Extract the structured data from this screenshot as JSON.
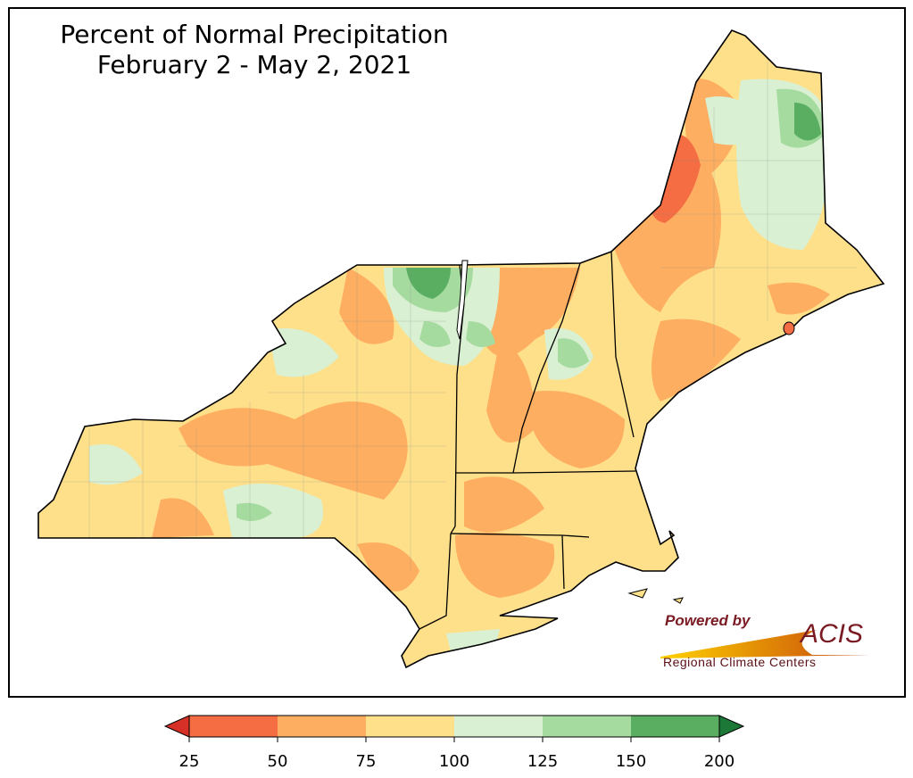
{
  "title": {
    "line1": "Percent of Normal Precipitation",
    "line2": "February 2 - May 2, 2021"
  },
  "logo": {
    "powered": "Powered by",
    "brand": "ACIS",
    "sub": "Regional Climate Centers"
  },
  "legend": {
    "ticks": [
      "25",
      "50",
      "75",
      "100",
      "125",
      "150",
      "200"
    ],
    "colors": [
      "#f46d43",
      "#fdae61",
      "#fee08b",
      "#d9f0d3",
      "#a6dba0",
      "#5aae61"
    ],
    "under_color": "#d73027",
    "over_color": "#1b7837"
  }
}
